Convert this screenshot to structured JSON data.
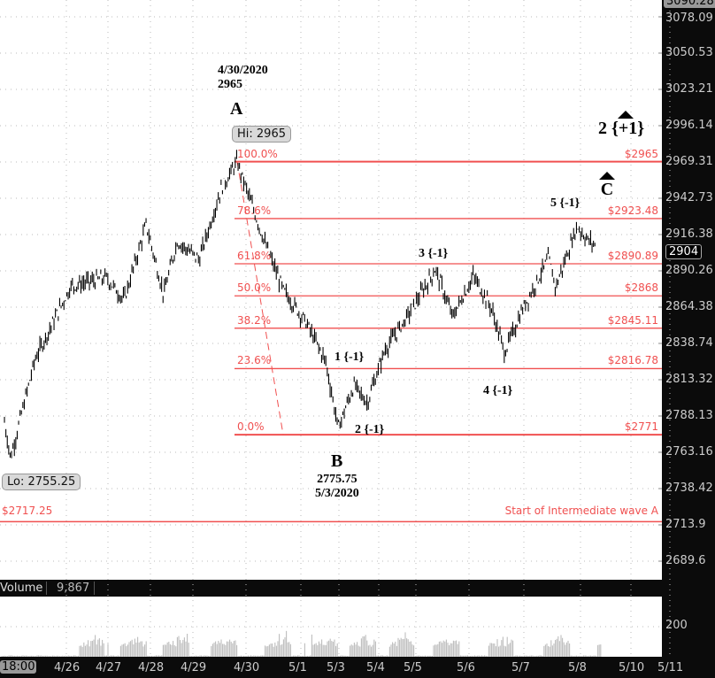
{
  "chart_data": {
    "type": "candlestick",
    "title": "",
    "y_axis": {
      "ticks": [
        "3078.09",
        "3050.53",
        "3023.21",
        "2996.14",
        "2969.31",
        "2942.73",
        "2916.38",
        "2890.26",
        "2864.38",
        "2838.74",
        "2813.32",
        "2788.13",
        "2763.16",
        "2738.42",
        "2713.9",
        "2689.6"
      ],
      "top_label": "3090.28",
      "current_price": "2904"
    },
    "x_axis": {
      "first_label": "18:00",
      "ticks": [
        "4/26",
        "4/27",
        "4/28",
        "4/29",
        "4/30",
        "5/1",
        "5/3",
        "5/4",
        "5/5",
        "5/6",
        "5/7",
        "5/8",
        "5/10",
        "5/11"
      ]
    },
    "price_path_day_index_price": [
      [
        -1.32,
        2780
      ],
      [
        -1.19,
        2755.25
      ],
      [
        -0.66,
        2824
      ],
      [
        0.11,
        2875
      ],
      [
        0.96,
        2881
      ],
      [
        1.38,
        2865
      ],
      [
        1.9,
        2919
      ],
      [
        2.31,
        2869
      ],
      [
        2.63,
        2907
      ],
      [
        3.12,
        2894
      ],
      [
        3.53,
        2945
      ],
      [
        3.83,
        2965
      ],
      [
        4.35,
        2905
      ],
      [
        4.68,
        2872
      ],
      [
        5.12,
        2850
      ],
      [
        5.65,
        2822
      ],
      [
        5.98,
        2775.75
      ],
      [
        6.38,
        2805
      ],
      [
        6.71,
        2793
      ],
      [
        7.17,
        2830
      ],
      [
        7.76,
        2853
      ],
      [
        8.37,
        2887
      ],
      [
        8.69,
        2853
      ],
      [
        9.08,
        2882
      ],
      [
        9.4,
        2860
      ],
      [
        9.65,
        2828
      ],
      [
        9.97,
        2858
      ],
      [
        10.44,
        2895
      ],
      [
        10.56,
        2874
      ],
      [
        10.94,
        2918
      ],
      [
        11.14,
        2908
      ],
      [
        11.31,
        2904
      ]
    ],
    "fib_levels": [
      {
        "pct": "100.0%",
        "price": 2965,
        "label": "$2965"
      },
      {
        "pct": "78.6%",
        "price": 2923.48,
        "label": "$2923.48"
      },
      {
        "pct": "61.8%",
        "price": 2890.89,
        "label": "$2890.89"
      },
      {
        "pct": "50.0%",
        "price": 2868,
        "label": "$2868"
      },
      {
        "pct": "38.2%",
        "price": 2845.11,
        "label": "$2845.11"
      },
      {
        "pct": "23.6%",
        "price": 2816.78,
        "label": "$2816.78"
      },
      {
        "pct": "0.0%",
        "price": 2771,
        "label": "$2771"
      }
    ],
    "support_line": {
      "price": 2717.25,
      "label": "$2717.25",
      "note": "Start of Intermediate wave A"
    },
    "hi_bubble": "Hi: 2965",
    "lo_bubble": "Lo: 2755.25",
    "annotations": {
      "a_date": "4/30/2020",
      "a_price": "2965",
      "a": "A",
      "b": "B",
      "b_price": "2775.75",
      "b_date": "5/3/2020",
      "c": "C",
      "w1": "1 {-1}",
      "w2": "2 {-1}",
      "w3": "3 {-1}",
      "w4": "4 {-1}",
      "w5": "5 {-1}",
      "w2_up": "2 {+1}"
    },
    "volume": {
      "label": "Volume",
      "value": "9,867",
      "ticks": [
        "200",
        "0"
      ]
    },
    "colors": {
      "fib": "#f05050",
      "axis_bg": "#0b0b0b",
      "price": "#000000",
      "volume": "#bdbdbd"
    }
  }
}
